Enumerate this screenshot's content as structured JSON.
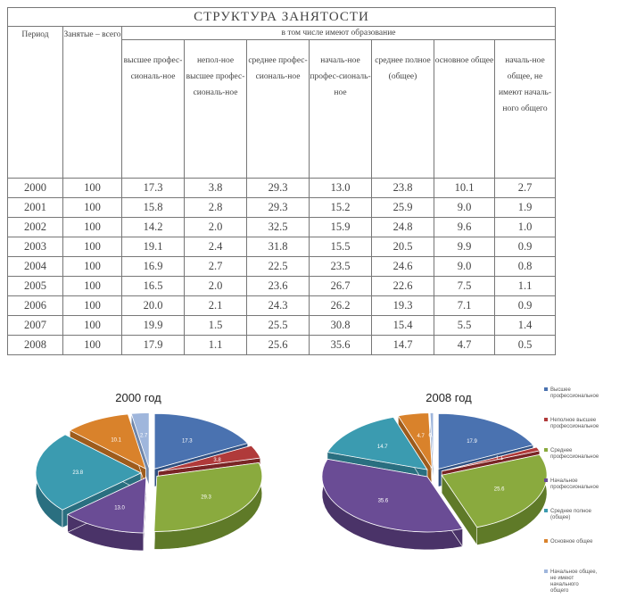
{
  "table": {
    "title": "СТРУКТУРА ЗАНЯТОСТИ",
    "period_header": "Период",
    "employed_header": "Занятые – всего",
    "span_header": "в том числе имеют образование",
    "subheaders": [
      "высшее профес-сиональ-ное",
      "непол-ное высшее профес-сиональ-ное",
      "среднее профес-сиональ-ное",
      "началь-ное профес-сиональ-ное",
      "среднее полное (общее)",
      "основное общее",
      "началь-ное общее, не имеют началь-ного общего"
    ],
    "rows": [
      [
        "2000",
        "100",
        "17.3",
        "3.8",
        "29.3",
        "13.0",
        "23.8",
        "10.1",
        "2.7"
      ],
      [
        "2001",
        "100",
        "15.8",
        "2.8",
        "29.3",
        "15.2",
        "25.9",
        "9.0",
        "1.9"
      ],
      [
        "2002",
        "100",
        "14.2",
        "2.0",
        "32.5",
        "15.9",
        "24.8",
        "9.6",
        "1.0"
      ],
      [
        "2003",
        "100",
        "19.1",
        "2.4",
        "31.8",
        "15.5",
        "20.5",
        "9.9",
        "0.9"
      ],
      [
        "2004",
        "100",
        "16.9",
        "2.7",
        "22.5",
        "23.5",
        "24.6",
        "9.0",
        "0.8"
      ],
      [
        "2005",
        "100",
        "16.5",
        "2.0",
        "23.6",
        "26.7",
        "22.6",
        "7.5",
        "1.1"
      ],
      [
        "2006",
        "100",
        "20.0",
        "2.1",
        "24.3",
        "26.2",
        "19.3",
        "7.1",
        "0.9"
      ],
      [
        "2007",
        "100",
        "19.9",
        "1.5",
        "25.5",
        "30.8",
        "15.4",
        "5.5",
        "1.4"
      ],
      [
        "2008",
        "100",
        "17.9",
        "1.1",
        "25.6",
        "35.6",
        "14.7",
        "4.7",
        "0.5"
      ]
    ]
  },
  "chart_data": [
    {
      "type": "pie",
      "title": "2000 год",
      "categories": [
        "Высшее профессиональное",
        "Неполное высшее профессиональное",
        "Среднее профессиональное",
        "Начальное профессиональное",
        "Среднее полное (общее)",
        "Основное общее",
        "Начальное общее, не имеют начального общего"
      ],
      "values": [
        17.3,
        3.8,
        29.3,
        13.0,
        23.8,
        10.1,
        2.7
      ]
    },
    {
      "type": "pie",
      "title": "2008 год",
      "categories": [
        "Высшее профессиональное",
        "Неполное высшее профессиональное",
        "Среднее профессиональное",
        "Начальное профессиональное",
        "Среднее полное (общее)",
        "Основное общее",
        "Начальное общее, не имеют начального общего"
      ],
      "values": [
        17.9,
        1.1,
        25.6,
        35.6,
        14.7,
        4.7,
        0.5
      ]
    }
  ],
  "legend": [
    "Высшее профессиональное",
    "Неполное высшее профессиональное",
    "Среднее профессиональное",
    "Начальное профессиональное",
    "Среднее полное (общее)",
    "Основное общее",
    "Начальное общее, не имеют начального общего"
  ],
  "colors": {
    "fills": [
      "#4a72b0",
      "#b03a3a",
      "#8aaa3e",
      "#6a4c95",
      "#3b9bb0",
      "#d9822b",
      "#9fb6dc"
    ],
    "sides": [
      "#2f4f80",
      "#7a2525",
      "#5f7a28",
      "#4a3368",
      "#2a6f80",
      "#9e5c1c",
      "#6f85a8"
    ]
  }
}
